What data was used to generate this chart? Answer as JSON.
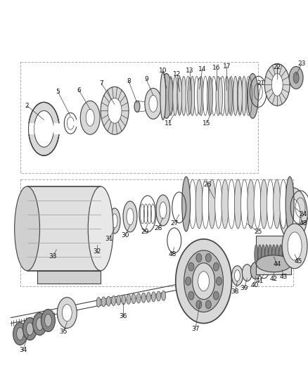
{
  "bg_color": "#ffffff",
  "line_color": "#404040",
  "gray_light": "#d8d8d8",
  "gray_med": "#b8b8b8",
  "gray_dark": "#888888",
  "fig_width": 4.39,
  "fig_height": 5.33,
  "dpi": 100
}
